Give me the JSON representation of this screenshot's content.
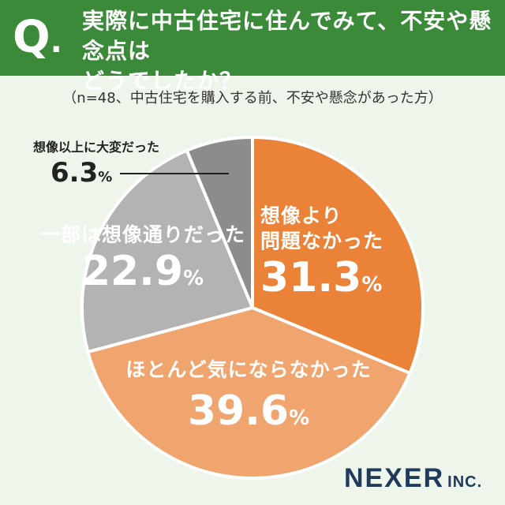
{
  "header": {
    "q_letter": "Q",
    "q_dot": ".",
    "question_line1": "実際に中古住宅に住んでみて、不安や懸念点は",
    "question_line2": "どうでしたか？",
    "bg_color": "#3a8a3a"
  },
  "note": "（n=48、中古住宅を購入する前、不安や懸念があった方）",
  "chart_data": {
    "type": "pie",
    "start_angle": "12 o'clock",
    "direction": "clockwise",
    "slices": [
      {
        "name_line1": "想像より",
        "name_line2": "問題なかった",
        "value": 31.3,
        "value_text": "31.3",
        "unit": "%",
        "color": "#ea8338"
      },
      {
        "name_line1": "ほとんど気にならなかった",
        "name_line2": "",
        "value": 39.6,
        "value_text": "39.6",
        "unit": "%",
        "color": "#f0a56f"
      },
      {
        "name_line1": "一部は想像通りだった",
        "name_line2": "",
        "value": 22.9,
        "value_text": "22.9",
        "unit": "%",
        "color": "#b3b3b3"
      },
      {
        "name_line1": "想像以上に大変だった",
        "name_line2": "",
        "value": 6.3,
        "value_text": "6.3",
        "unit": "%",
        "color": "#8c8c8c"
      }
    ]
  },
  "logo": {
    "main": "NEXER",
    "suffix": "INC."
  }
}
